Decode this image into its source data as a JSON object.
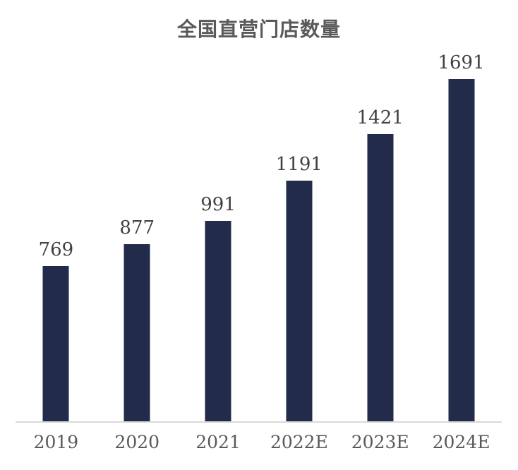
{
  "chart_data": {
    "type": "bar",
    "title": "全国直营门店数量",
    "categories": [
      "2019",
      "2020",
      "2021",
      "2022E",
      "2023E",
      "2024E"
    ],
    "values": [
      769,
      877,
      991,
      1191,
      1421,
      1691
    ],
    "series": [
      {
        "name": "全国直营门店数量",
        "values": [
          769,
          877,
          991,
          1191,
          1421,
          1691
        ]
      }
    ],
    "xlabel": "",
    "ylabel": "",
    "ylim": [
      0,
      1800
    ],
    "grid": false,
    "legend_position": "none",
    "data_labels_shown": true,
    "colors": {
      "bar": "#222B49",
      "title": "#595959",
      "value_label": "#404040",
      "tick_label": "#595959",
      "axis_line": "#D9D9D9",
      "background": "#FFFFFF"
    }
  }
}
